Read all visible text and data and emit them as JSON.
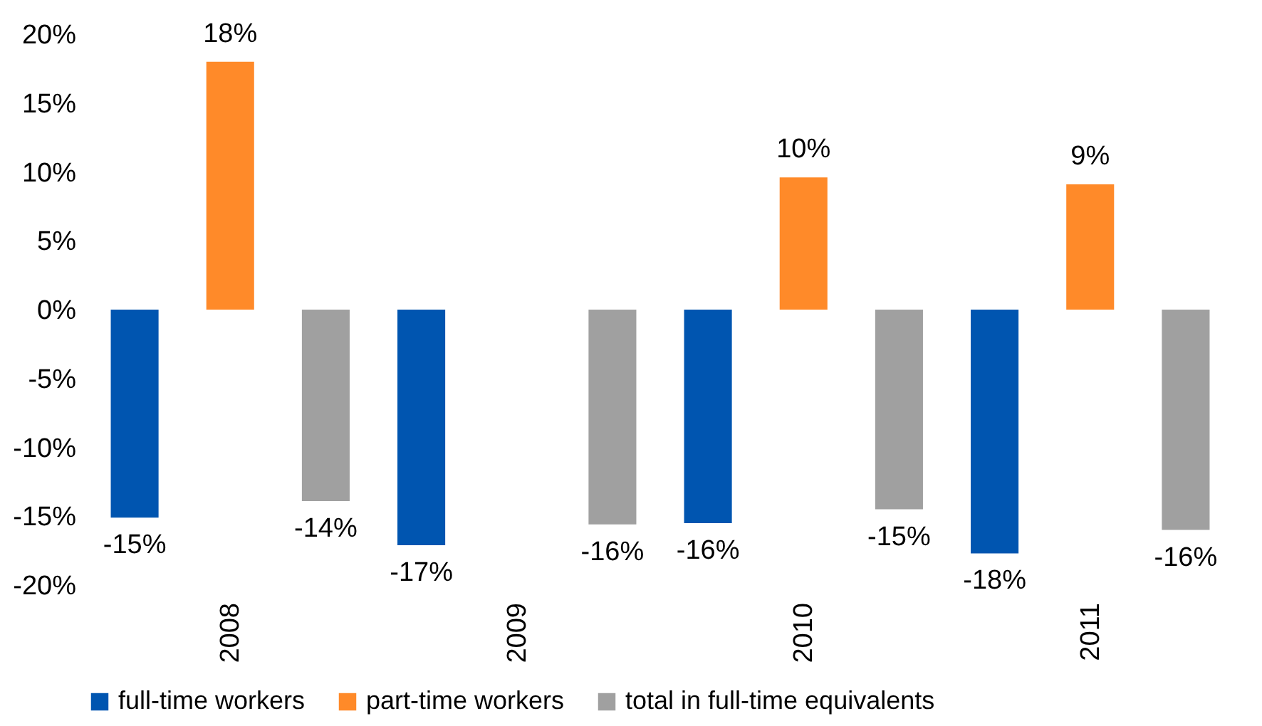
{
  "chart_data": {
    "type": "bar",
    "categories": [
      "2008",
      "2009",
      "2010",
      "2011"
    ],
    "series": [
      {
        "name": "full-time workers",
        "color": "#0055b0",
        "values": [
          -15.1,
          -17.1,
          -15.5,
          -17.7
        ],
        "value_labels": [
          "-15%",
          "-17%",
          "-16%",
          "-18%"
        ]
      },
      {
        "name": "part-time workers",
        "color": "#ff8a29",
        "values": [
          18.0,
          null,
          9.6,
          9.1
        ],
        "value_labels": [
          "18%",
          null,
          "10%",
          "9%"
        ]
      },
      {
        "name": "total in full-time equivalents",
        "color": "#a0a0a0",
        "values": [
          -13.9,
          -15.6,
          -14.5,
          -16.0
        ],
        "value_labels": [
          "-14%",
          "-16%",
          "-15%",
          "-16%"
        ]
      }
    ],
    "ylim": [
      -20,
      20
    ],
    "yticks": [
      {
        "value": -20,
        "label": "-20%"
      },
      {
        "value": -15,
        "label": "-15%"
      },
      {
        "value": -10,
        "label": "-10%"
      },
      {
        "value": -5,
        "label": "-5%"
      },
      {
        "value": 0,
        "label": "0%"
      },
      {
        "value": 5,
        "label": "5%"
      },
      {
        "value": 10,
        "label": "10%"
      },
      {
        "value": 15,
        "label": "15%"
      },
      {
        "value": 20,
        "label": "20%"
      }
    ],
    "grid": false,
    "legend": "bottom"
  }
}
